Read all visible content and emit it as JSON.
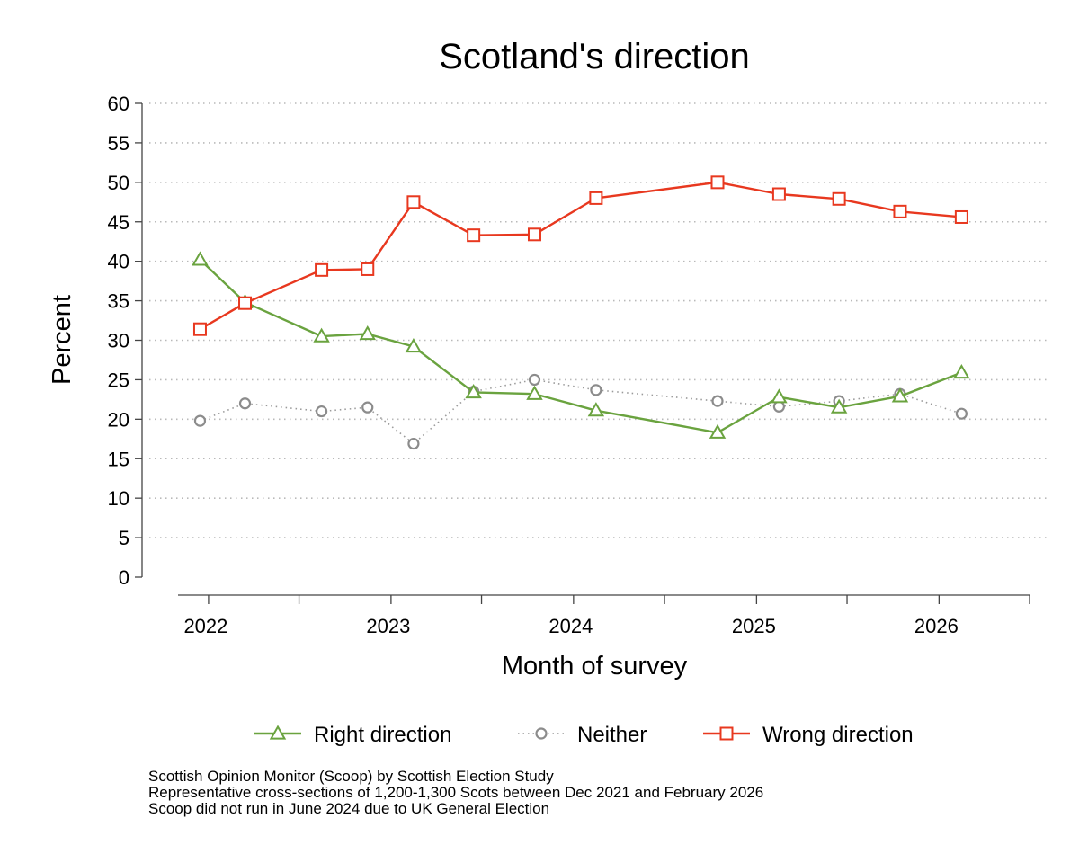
{
  "chart_data": {
    "type": "line",
    "title": "Scotland's direction",
    "xlabel": "Month of survey",
    "ylabel": "Percent",
    "ylim": [
      0,
      60
    ],
    "yticks": [
      0,
      5,
      10,
      15,
      20,
      25,
      30,
      35,
      40,
      45,
      50,
      55,
      60
    ],
    "xlim": [
      "2021-11-01",
      "2026-07-01"
    ],
    "xtick_labels": [
      "2022",
      "2023",
      "2024",
      "2025",
      "2026"
    ],
    "xtick_dates": [
      "2022-01-01",
      "2023-01-01",
      "2024-01-01",
      "2025-01-01",
      "2026-01-01"
    ],
    "xminor_dates": [
      "2021-07-01",
      "2022-07-01",
      "2023-07-01",
      "2024-07-01",
      "2025-07-01",
      "2026-07-01"
    ],
    "grid": "horizontal dotted",
    "legend_position": "bottom",
    "x": [
      "2021-12",
      "2022-03",
      "2022-08",
      "2022-11",
      "2023-02",
      "2023-06",
      "2023-10",
      "2024-02",
      "2024-10",
      "2025-02",
      "2025-06",
      "2025-10",
      "2026-02"
    ],
    "series": [
      {
        "name": "Right direction",
        "color": "#6aa33f",
        "marker": "triangle",
        "line": "solid",
        "values": [
          40.2,
          34.8,
          30.5,
          30.8,
          29.2,
          23.4,
          23.2,
          21.1,
          18.3,
          22.8,
          21.5,
          22.9,
          25.9
        ]
      },
      {
        "name": "Neither",
        "color": "#8c8c8c",
        "marker": "circle",
        "line": "dotted",
        "values": [
          19.8,
          22.0,
          21.0,
          21.5,
          16.9,
          23.5,
          25.0,
          23.7,
          22.3,
          21.6,
          22.3,
          23.2,
          20.7
        ]
      },
      {
        "name": "Wrong direction",
        "color": "#e8381f",
        "marker": "square",
        "line": "solid",
        "values": [
          31.4,
          34.7,
          38.9,
          39.0,
          47.5,
          43.3,
          43.4,
          48.0,
          50.0,
          48.5,
          47.9,
          46.3,
          45.6
        ]
      }
    ]
  },
  "notes": [
    "Scottish Opinion Monitor (Scoop) by Scottish Election Study",
    "Representative cross-sections of 1,200-1,300 Scots between Dec 2021 and February 2026",
    "Scoop did not run in June 2024 due to UK General Election"
  ]
}
